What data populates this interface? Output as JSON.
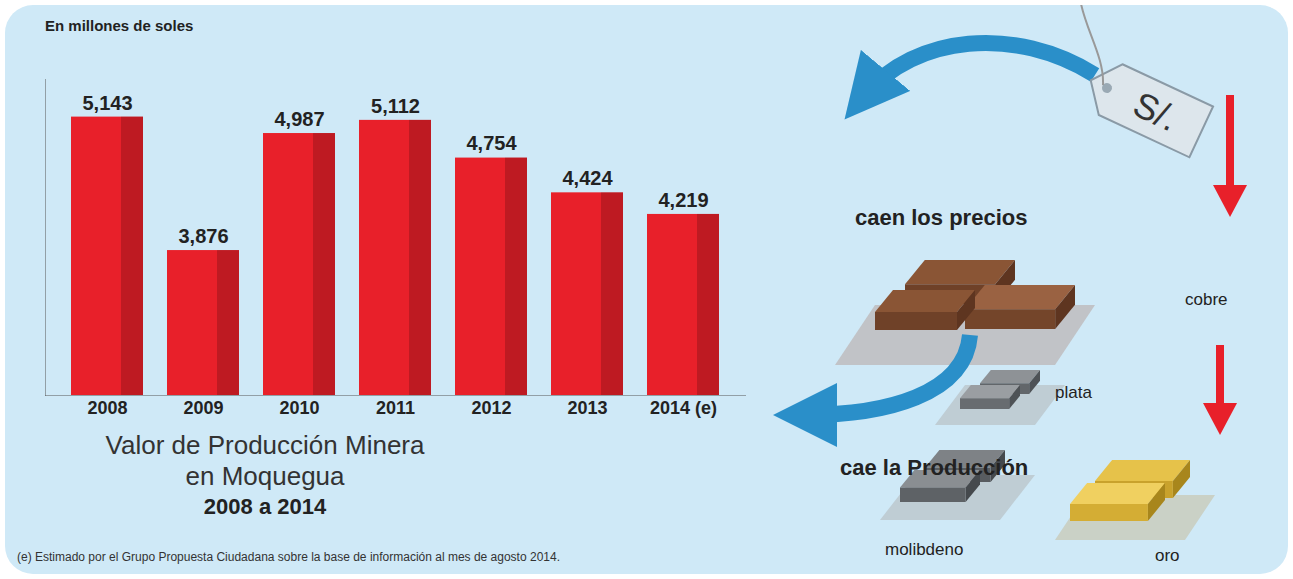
{
  "chart_data": {
    "type": "bar",
    "title": "Valor de Producción Minera en Moquegua",
    "subtitle": "2008 a 2014",
    "ylabel": "En millones de soles",
    "categories": [
      "2008",
      "2009",
      "2010",
      "2011",
      "2012",
      "2013",
      "2014 (e)"
    ],
    "values": [
      5143,
      3876,
      4987,
      5112,
      4754,
      4424,
      4219
    ],
    "value_labels": [
      "5,143",
      "3,876",
      "4,987",
      "5,112",
      "4,754",
      "4,424",
      "4,219"
    ],
    "color": "#e8202a",
    "data_labels": true,
    "tick_labels": "x",
    "ylim": [
      2500,
      5500
    ],
    "annotations": [
      "caen los precios",
      "cae la Producción"
    ],
    "price_tag": "S/.",
    "metals": [
      "cobre",
      "plata",
      "molibdeno",
      "oro"
    ],
    "note": "(e) Estimado por el Grupo Propuesta Ciudadana sobre la base de información al mes de agosto 2014."
  }
}
